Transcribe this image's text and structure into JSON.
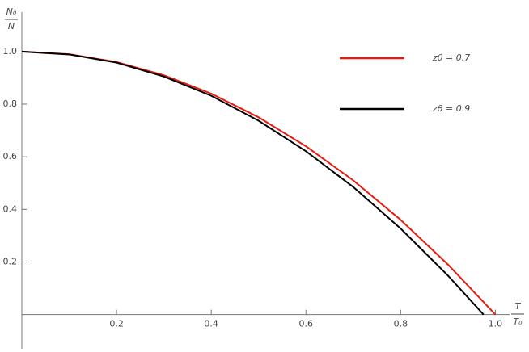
{
  "chart_data": {
    "type": "line",
    "xlabel": {
      "numerator": "T",
      "denominator": "T₀"
    },
    "ylabel": {
      "numerator": "N₀",
      "denominator": "N"
    },
    "xlim": [
      0,
      1.03
    ],
    "ylim": [
      -0.13,
      1.15
    ],
    "xticks": [
      0.2,
      0.4,
      0.6,
      0.8,
      {
        "value": 1,
        "label": "1.0"
      }
    ],
    "yticks": [
      0.2,
      0.4,
      0.6,
      0.8,
      {
        "value": 1,
        "label": "1.0"
      }
    ],
    "series": [
      {
        "name": "zθ = 0.7",
        "color": "#e8190e",
        "x": [
          0,
          0.1,
          0.2,
          0.3,
          0.4,
          0.5,
          0.6,
          0.7,
          0.8,
          0.9,
          1.0
        ],
        "values": [
          1,
          0.99,
          0.96,
          0.91,
          0.84,
          0.75,
          0.64,
          0.51,
          0.36,
          0.19,
          0
        ]
      },
      {
        "name": "zθ = 0.9",
        "color": "#000000",
        "x": [
          0,
          0.1,
          0.2,
          0.3,
          0.4,
          0.5,
          0.6,
          0.7,
          0.8,
          0.9,
          0.975
        ],
        "values": [
          1,
          0.989,
          0.958,
          0.905,
          0.832,
          0.737,
          0.621,
          0.485,
          0.327,
          0.148,
          0
        ]
      }
    ]
  }
}
